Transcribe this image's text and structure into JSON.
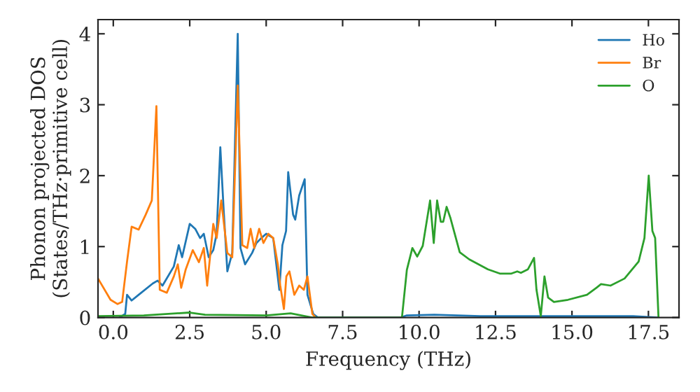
{
  "chart_data": {
    "type": "line",
    "xlabel": "Frequency (THz)",
    "ylabel": "Phonon projected DOS\n(States/THz·primitive cell)",
    "xlim": [
      -0.5,
      18.5
    ],
    "ylim": [
      0,
      4.2
    ],
    "xticks": [
      {
        "value": 0,
        "label": "0.0"
      },
      {
        "value": 2.5,
        "label": "2.5"
      },
      {
        "value": 5,
        "label": "5.0"
      },
      {
        "value": 7.5,
        "label": "7.5"
      },
      {
        "value": 10,
        "label": "10.0"
      },
      {
        "value": 12.5,
        "label": "12.5"
      },
      {
        "value": 15,
        "label": "15.0"
      },
      {
        "value": 17.5,
        "label": "17.5"
      }
    ],
    "yticks": [
      0,
      1,
      2,
      3,
      4
    ],
    "legend": "top right",
    "grid": false,
    "marker": "none",
    "line_style": "solid",
    "series": [
      {
        "name": "Ho",
        "color": "#1f77b4",
        "x": [
          0.2,
          0.39,
          0.45,
          0.6,
          0.83,
          1.29,
          1.45,
          1.61,
          1.98,
          2.14,
          2.25,
          2.5,
          2.68,
          2.84,
          2.96,
          3.12,
          3.27,
          3.38,
          3.5,
          3.61,
          3.73,
          3.89,
          4.07,
          4.16,
          4.31,
          4.54,
          4.68,
          4.84,
          5.0,
          5.23,
          5.43,
          5.53,
          5.65,
          5.72,
          5.88,
          5.95,
          6.08,
          6.26,
          6.35,
          6.54,
          6.69,
          9.4,
          9.6,
          10.5,
          12,
          14,
          17,
          17.8
        ],
        "values": [
          0,
          0.05,
          0.32,
          0.24,
          0.32,
          0.48,
          0.52,
          0.45,
          0.72,
          1.02,
          0.85,
          1.32,
          1.25,
          1.12,
          1.18,
          0.85,
          0.95,
          1.18,
          2.4,
          1.51,
          0.65,
          0.91,
          4.0,
          0.98,
          0.75,
          0.91,
          1.05,
          1.12,
          1.18,
          1.12,
          0.39,
          1.02,
          1.22,
          2.05,
          1.45,
          1.38,
          1.72,
          1.95,
          0.32,
          0.05,
          0,
          0,
          0.03,
          0.04,
          0.02,
          0.02,
          0.02,
          0
        ]
      },
      {
        "name": "Br",
        "color": "#ff7f0e",
        "x": [
          -0.5,
          -0.09,
          0.14,
          0.29,
          0.45,
          0.6,
          0.83,
          1.06,
          1.26,
          1.41,
          1.52,
          1.75,
          1.98,
          2.11,
          2.22,
          2.37,
          2.6,
          2.8,
          2.96,
          3.07,
          3.27,
          3.38,
          3.53,
          3.73,
          3.89,
          4.07,
          4.22,
          4.38,
          4.49,
          4.61,
          4.77,
          4.91,
          5.07,
          5.23,
          5.38,
          5.46,
          5.58,
          5.66,
          5.76,
          5.92,
          6.08,
          6.23,
          6.35,
          6.51,
          6.62
        ],
        "values": [
          0.55,
          0.25,
          0.19,
          0.22,
          0.79,
          1.28,
          1.24,
          1.45,
          1.65,
          2.98,
          0.39,
          0.35,
          0.58,
          0.75,
          0.42,
          0.68,
          0.95,
          0.78,
          0.98,
          0.45,
          1.32,
          1.12,
          1.65,
          0.91,
          0.85,
          3.27,
          1.02,
          0.98,
          1.25,
          0.98,
          1.25,
          1.05,
          1.18,
          1.12,
          0.75,
          0.45,
          0.12,
          0.58,
          0.65,
          0.32,
          0.45,
          0.39,
          0.58,
          0.05,
          0
        ]
      },
      {
        "name": "O",
        "color": "#2ca02c",
        "x": [
          -0.5,
          1,
          2.5,
          3,
          5,
          5.8,
          6.5,
          9.44,
          9.6,
          9.78,
          9.94,
          10.12,
          10.36,
          10.48,
          10.59,
          10.71,
          10.79,
          10.9,
          11.02,
          11.33,
          11.64,
          12.25,
          12.64,
          13.02,
          13.21,
          13.33,
          13.56,
          13.76,
          13.84,
          13.98,
          14.1,
          14.22,
          14.41,
          14.87,
          15.49,
          15.8,
          15.95,
          16.26,
          16.72,
          17.18,
          17.37,
          17.51,
          17.63,
          17.72,
          17.83
        ],
        "values": [
          0.02,
          0.03,
          0.07,
          0.04,
          0.03,
          0.06,
          0,
          0,
          0.67,
          0.98,
          0.86,
          1.01,
          1.65,
          1.05,
          1.65,
          1.35,
          1.35,
          1.56,
          1.41,
          0.92,
          0.82,
          0.68,
          0.62,
          0.62,
          0.65,
          0.63,
          0.68,
          0.84,
          0.39,
          0.02,
          0.58,
          0.28,
          0.22,
          0.25,
          0.32,
          0.42,
          0.47,
          0.45,
          0.55,
          0.79,
          1.12,
          2.0,
          1.22,
          1.12,
          0
        ]
      }
    ]
  }
}
